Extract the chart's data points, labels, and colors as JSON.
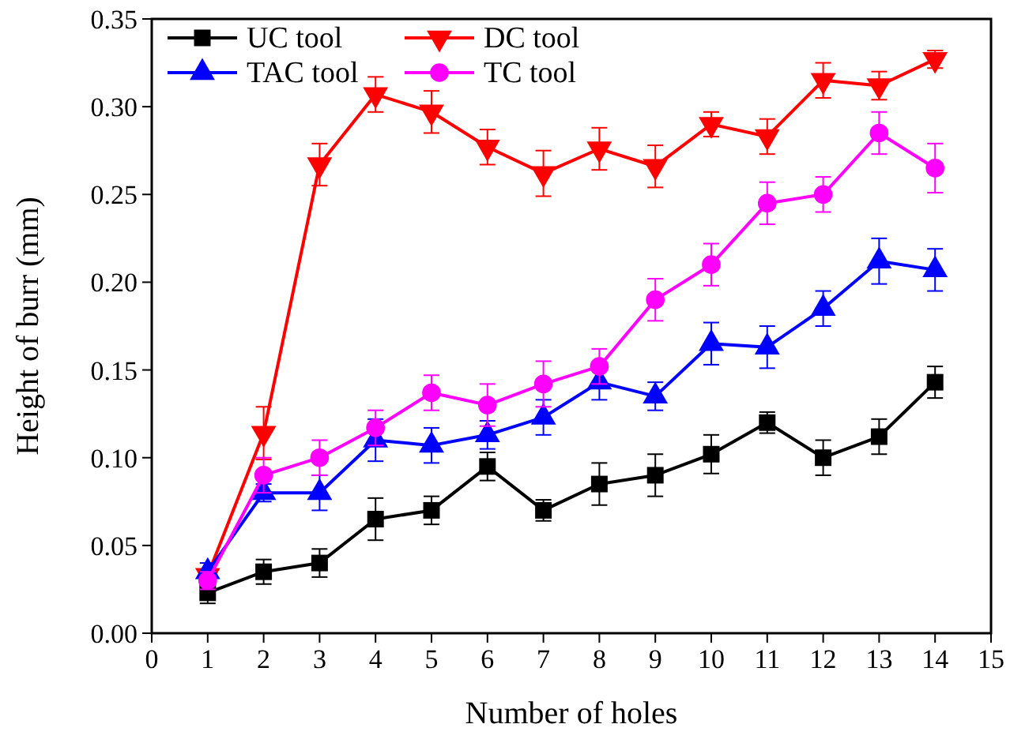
{
  "chart_data": {
    "type": "line",
    "xlabel": "Number of holes",
    "ylabel": "Height of burr (mm)",
    "x": [
      1,
      2,
      3,
      4,
      5,
      6,
      7,
      8,
      9,
      10,
      11,
      12,
      13,
      14
    ],
    "xlim": [
      0,
      15
    ],
    "xticks": [
      0,
      1,
      2,
      3,
      4,
      5,
      6,
      7,
      8,
      9,
      10,
      11,
      12,
      13,
      14,
      15
    ],
    "ylim": [
      0,
      0.35
    ],
    "yticks": [
      {
        "value": 0,
        "label": "0.00"
      },
      {
        "value": 0.05,
        "label": "0.05"
      },
      {
        "value": 0.1,
        "label": "0.10"
      },
      {
        "value": 0.15,
        "label": "0.15"
      },
      {
        "value": 0.2,
        "label": "0.20"
      },
      {
        "value": 0.25,
        "label": "0.25"
      },
      {
        "value": 0.3,
        "label": "0.30"
      },
      {
        "value": 0.35,
        "label": "0.35"
      }
    ],
    "grid": false,
    "legend": "top left",
    "line_style": "solid",
    "series": [
      {
        "name": "UC tool",
        "color": "#000000",
        "marker": "square",
        "values": [
          0.023,
          0.035,
          0.04,
          0.065,
          0.07,
          0.095,
          0.07,
          0.085,
          0.09,
          0.102,
          0.12,
          0.1,
          0.112,
          0.143
        ],
        "errors": [
          0.006,
          0.007,
          0.008,
          0.012,
          0.008,
          0.008,
          0.006,
          0.012,
          0.012,
          0.011,
          0.006,
          0.01,
          0.01,
          0.009
        ]
      },
      {
        "name": "DC tool",
        "color": "#ff0000",
        "marker": "triangle-down",
        "values": [
          0.033,
          0.114,
          0.267,
          0.307,
          0.297,
          0.277,
          0.262,
          0.276,
          0.266,
          0.29,
          0.283,
          0.315,
          0.312,
          0.327
        ],
        "errors": [
          null,
          0.015,
          0.012,
          0.01,
          0.012,
          0.01,
          0.013,
          0.012,
          0.012,
          0.007,
          0.01,
          0.01,
          0.008,
          0.005
        ]
      },
      {
        "name": "TAC tool",
        "color": "#0000ff",
        "marker": "triangle",
        "values": [
          0.035,
          0.08,
          0.08,
          0.11,
          0.107,
          0.113,
          0.123,
          0.143,
          0.135,
          0.165,
          0.163,
          0.185,
          0.212,
          0.207
        ],
        "errors": [
          0.005,
          0.005,
          0.01,
          0.012,
          0.01,
          0.008,
          0.01,
          0.01,
          0.008,
          0.012,
          0.012,
          0.01,
          0.013,
          0.012
        ]
      },
      {
        "name": "TC tool",
        "color": "#ff00ff",
        "marker": "circle",
        "values": [
          0.03,
          0.09,
          0.1,
          0.117,
          0.137,
          0.13,
          0.142,
          0.152,
          0.19,
          0.21,
          0.245,
          0.25,
          0.285,
          0.265
        ],
        "errors": [
          0.005,
          0.01,
          0.01,
          0.01,
          0.01,
          0.012,
          0.013,
          0.01,
          0.012,
          0.012,
          0.012,
          0.01,
          0.012,
          0.014
        ]
      }
    ]
  }
}
